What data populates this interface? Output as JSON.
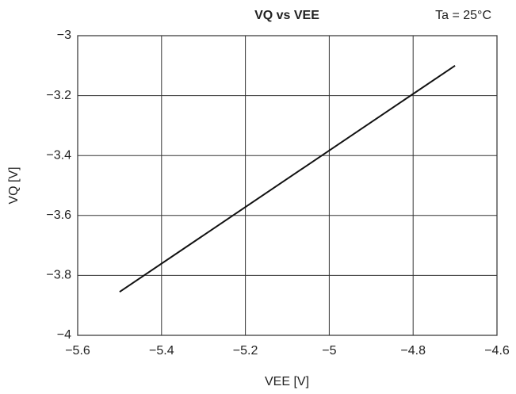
{
  "chart_data": {
    "type": "line",
    "title": "VQ vs VEE",
    "annotation": "Ta = 25°C",
    "x_label": "VEE [V]",
    "y_label": "VQ [V]",
    "x": [
      -5.5,
      -4.7
    ],
    "values": [
      -3.855,
      -3.1
    ],
    "color": "#111111",
    "xlim": [
      -5.6,
      -4.6
    ],
    "xticks": [
      {
        "value": -5.6,
        "label": "−5.6"
      },
      {
        "value": -5.4,
        "label": "−5.4"
      },
      {
        "value": -5.2,
        "label": "−5.2"
      },
      {
        "value": -5,
        "label": "−5"
      },
      {
        "value": -4.8,
        "label": "−4.8"
      },
      {
        "value": -4.6,
        "label": "−4.6"
      }
    ],
    "ylim": [
      -4,
      -3
    ],
    "yticks": [
      {
        "value": -4,
        "label": "−4"
      },
      {
        "value": -3.8,
        "label": "−3.8"
      },
      {
        "value": -3.6,
        "label": "−3.6"
      },
      {
        "value": -3.4,
        "label": "−3.4"
      },
      {
        "value": -3.2,
        "label": "−3.2"
      },
      {
        "value": -3,
        "label": "−3"
      }
    ],
    "grid": true
  }
}
